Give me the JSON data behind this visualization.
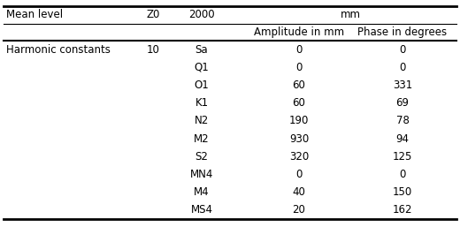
{
  "header_row1": [
    "Mean level",
    "Z0",
    "2000",
    "mm"
  ],
  "header_row2_amp": "Amplitude in mm",
  "header_row2_phase": "Phase in degrees",
  "data_label_col1": "Harmonic constants",
  "data_label_col2": "10",
  "rows": [
    [
      "Sa",
      "0",
      "0"
    ],
    [
      "Q1",
      "0",
      "0"
    ],
    [
      "O1",
      "60",
      "331"
    ],
    [
      "K1",
      "60",
      "69"
    ],
    [
      "N2",
      "190",
      "78"
    ],
    [
      "M2",
      "930",
      "94"
    ],
    [
      "S2",
      "320",
      "125"
    ],
    [
      "MN4",
      "0",
      "0"
    ],
    [
      "M4",
      "40",
      "150"
    ],
    [
      "MS4",
      "20",
      "162"
    ]
  ],
  "bg_color": "#ffffff",
  "text_color": "#000000",
  "line_color": "#000000",
  "font_size": 8.5
}
